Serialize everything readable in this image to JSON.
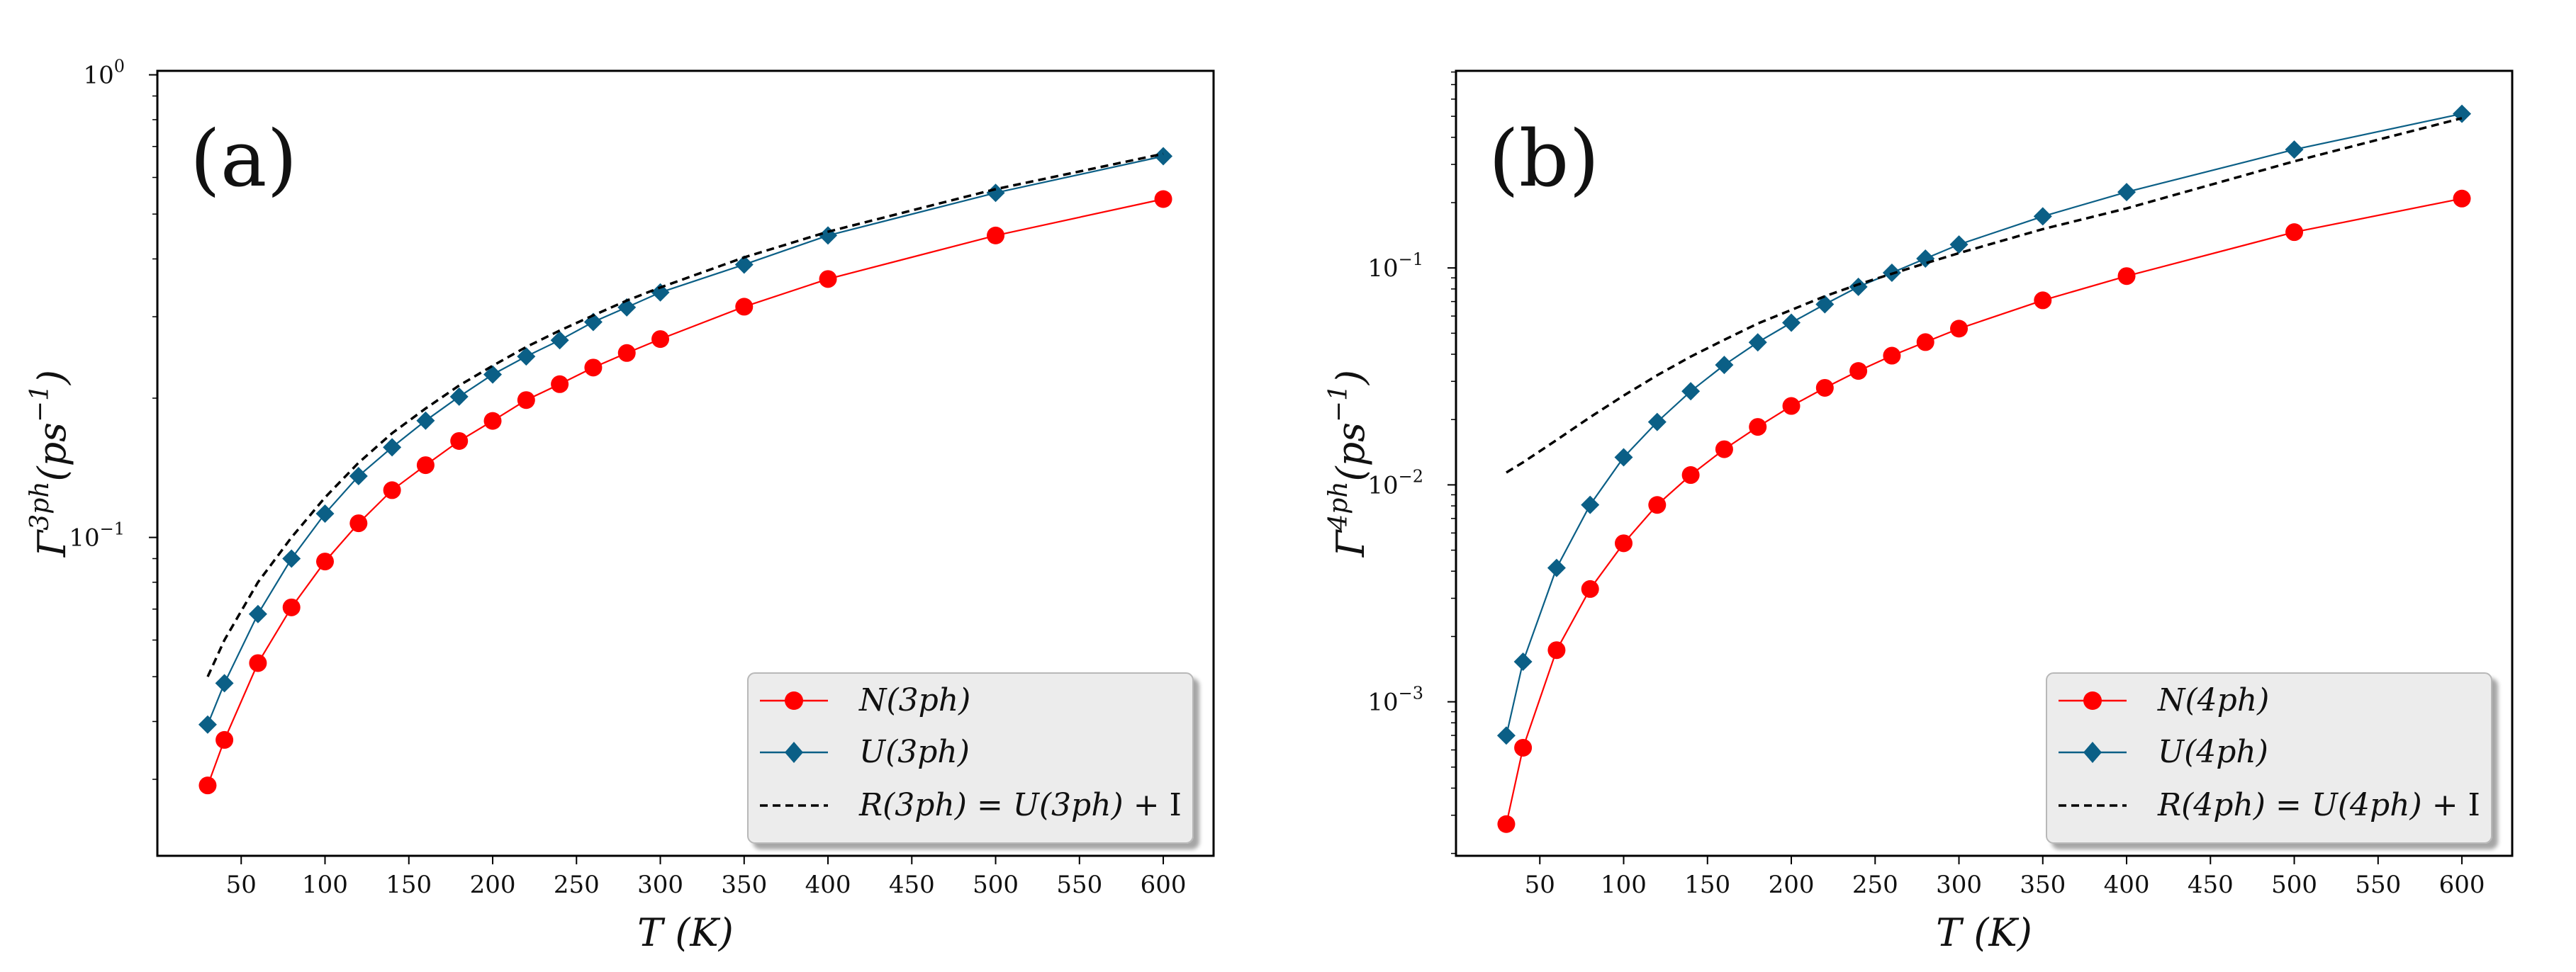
{
  "chart_data": [
    {
      "type": "line",
      "panel_label": "(a)",
      "xlabel": "T (K)",
      "ylabel": "Γ^3ph(ps^-1)",
      "ylabel_base": "Γ",
      "ylabel_sup": "3ph",
      "ylabel_unit": "(ps",
      "ylabel_unit_sup": "−1",
      "ylabel_close": ")",
      "yscale": "log",
      "xlim": [
        0,
        630
      ],
      "ylim": [
        0.0205,
        1.02
      ],
      "x_ticks": [
        50,
        100,
        150,
        200,
        250,
        300,
        350,
        400,
        450,
        500,
        550,
        600
      ],
      "y_ticks": [
        {
          "value": 0.1,
          "base": "10",
          "exp": "−1"
        },
        {
          "value": 1.0,
          "base": "10",
          "exp": "0"
        }
      ],
      "legend_position": "lower-right",
      "series": [
        {
          "name": "N(3ph)",
          "style": "line-circle",
          "color": "#ff0000",
          "x": [
            30,
            40,
            60,
            80,
            100,
            120,
            140,
            160,
            180,
            200,
            220,
            240,
            260,
            280,
            300,
            350,
            400,
            500,
            600
          ],
          "y": [
            0.0291,
            0.0365,
            0.0535,
            0.0706,
            0.0887,
            0.1073,
            0.1265,
            0.1433,
            0.1616,
            0.1786,
            0.1981,
            0.2144,
            0.2329,
            0.2504,
            0.2684,
            0.3153,
            0.3619,
            0.4495,
            0.5388
          ]
        },
        {
          "name": "U(3ph)",
          "style": "line-diamond",
          "color": "#0b5f86",
          "x": [
            30,
            40,
            60,
            80,
            100,
            120,
            140,
            160,
            180,
            200,
            220,
            240,
            260,
            280,
            300,
            350,
            400,
            500,
            600
          ],
          "y": [
            0.0394,
            0.0484,
            0.0683,
            0.09,
            0.1126,
            0.1357,
            0.1566,
            0.1788,
            0.2015,
            0.225,
            0.2462,
            0.2669,
            0.2922,
            0.3143,
            0.3385,
            0.3889,
            0.4495,
            0.5557,
            0.667
          ]
        },
        {
          "name": "R(3ph) = U(3ph) + I",
          "style": "dashed",
          "color": "#000000",
          "x": [
            30,
            40,
            60,
            80,
            100,
            120,
            140,
            160,
            180,
            200,
            220,
            240,
            260,
            280,
            300,
            350,
            400,
            500,
            600
          ],
          "y": [
            0.05,
            0.06,
            0.08,
            0.1,
            0.122,
            0.145,
            0.168,
            0.19,
            0.213,
            0.235,
            0.258,
            0.28,
            0.302,
            0.325,
            0.347,
            0.403,
            0.458,
            0.566,
            0.675
          ]
        }
      ],
      "legend_entries": [
        {
          "label_core": "N(3ph)",
          "suffix": ""
        },
        {
          "label_core": "U(3ph)",
          "suffix": ""
        },
        {
          "label_core": "R(3ph) = U(3ph)",
          "suffix": " + I"
        }
      ]
    },
    {
      "type": "line",
      "panel_label": "(b)",
      "xlabel": "T (K)",
      "ylabel": "Γ^4ph(ps^-1)",
      "ylabel_base": "Γ",
      "ylabel_sup": "4ph",
      "ylabel_unit": "(ps",
      "ylabel_unit_sup": "−1",
      "ylabel_close": ")",
      "yscale": "log",
      "xlim": [
        0,
        630
      ],
      "ylim": [
        0.000195,
        0.81
      ],
      "x_ticks": [
        50,
        100,
        150,
        200,
        250,
        300,
        350,
        400,
        450,
        500,
        550,
        600
      ],
      "y_ticks": [
        {
          "value": 0.001,
          "base": "10",
          "exp": "−3"
        },
        {
          "value": 0.01,
          "base": "10",
          "exp": "−2"
        },
        {
          "value": 0.1,
          "base": "10",
          "exp": "−1"
        }
      ],
      "legend_position": "lower-right",
      "series": [
        {
          "name": "N(4ph)",
          "style": "line-circle",
          "color": "#ff0000",
          "x": [
            30,
            40,
            60,
            80,
            100,
            120,
            140,
            160,
            180,
            200,
            220,
            240,
            260,
            280,
            300,
            350,
            400,
            500,
            600
          ],
          "y": [
            0.000273,
            0.000614,
            0.00173,
            0.00331,
            0.00538,
            0.00808,
            0.0111,
            0.0146,
            0.0185,
            0.0231,
            0.028,
            0.0335,
            0.0394,
            0.0455,
            0.0525,
            0.0709,
            0.0917,
            0.1462,
            0.2088
          ]
        },
        {
          "name": "U(4ph)",
          "style": "line-diamond",
          "color": "#0b5f86",
          "x": [
            30,
            40,
            60,
            80,
            100,
            120,
            140,
            160,
            180,
            200,
            220,
            240,
            260,
            280,
            300,
            350,
            400,
            500,
            600
          ],
          "y": [
            0.000699,
            0.00153,
            0.00414,
            0.00809,
            0.0134,
            0.0195,
            0.027,
            0.0357,
            0.0454,
            0.0559,
            0.068,
            0.0818,
            0.095,
            0.1104,
            0.1282,
            0.1729,
            0.2237,
            0.3512,
            0.5134
          ]
        },
        {
          "name": "R(4ph) = U(4ph) + I",
          "style": "dashed",
          "color": "#000000",
          "x": [
            30,
            40,
            60,
            80,
            100,
            120,
            140,
            160,
            180,
            200,
            220,
            240,
            260,
            280,
            300,
            350,
            400,
            500,
            600
          ],
          "y": [
            0.0114,
            0.0127,
            0.0161,
            0.0205,
            0.0258,
            0.032,
            0.039,
            0.0466,
            0.0554,
            0.064,
            0.074,
            0.084,
            0.094,
            0.105,
            0.117,
            0.151,
            0.188,
            0.31,
            0.49
          ]
        }
      ],
      "legend_entries": [
        {
          "label_core": "N(4ph)",
          "suffix": ""
        },
        {
          "label_core": "U(4ph)",
          "suffix": ""
        },
        {
          "label_core": "R(4ph) = U(4ph)",
          "suffix": " + I"
        }
      ]
    }
  ]
}
